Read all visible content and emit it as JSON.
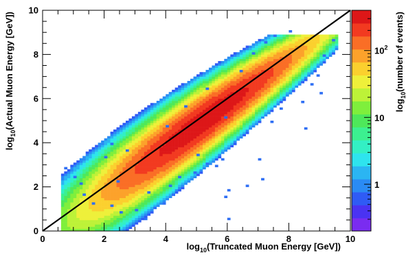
{
  "chart_data": {
    "type": "heatmap",
    "title": "",
    "xlabel": "log10(Truncated Muon Energy [GeV])",
    "ylabel": "log10(Actual Muon Energy [GeV])",
    "xlim": [
      0,
      10
    ],
    "ylim": [
      0,
      10
    ],
    "x_ticks": [
      "0",
      "2",
      "4",
      "6",
      "8",
      "10"
    ],
    "y_ticks": [
      "0",
      "2",
      "4",
      "6",
      "8",
      "10"
    ],
    "colorbar": {
      "label": "log10(number of events)",
      "scale": "log",
      "range": [
        0.2,
        400
      ],
      "ticks": [
        {
          "value": 1,
          "label": "1"
        },
        {
          "value": 10,
          "label": "10"
        },
        {
          "value": 100,
          "label": "10^2"
        }
      ]
    },
    "reference_line": {
      "description": "y = x",
      "from": [
        0,
        0
      ],
      "to": [
        10,
        10
      ],
      "color": "#000000"
    },
    "band": {
      "x_start": 0.6,
      "x_end": 9.6,
      "y_max": 8.9,
      "offset": -0.2,
      "spread_near_start": 0.85,
      "spread_near_end": 0.42,
      "peak_count": 350
    },
    "outliers": [
      [
        0.7,
        2.8
      ],
      [
        1.0,
        2.4
      ],
      [
        1.2,
        2.1
      ],
      [
        1.3,
        1.6
      ],
      [
        1.6,
        1.2
      ],
      [
        2.2,
        1.1
      ],
      [
        2.5,
        0.8
      ],
      [
        3.3,
        0.5
      ],
      [
        3.0,
        0.9
      ],
      [
        3.6,
        1.0
      ],
      [
        2.0,
        3.3
      ],
      [
        2.2,
        3.9
      ],
      [
        2.7,
        3.6
      ],
      [
        4.2,
        1.6
      ],
      [
        4.4,
        2.4
      ],
      [
        4.9,
        2.6
      ],
      [
        5.3,
        3.0
      ],
      [
        5.6,
        2.9
      ],
      [
        5.8,
        3.2
      ],
      [
        6.0,
        1.8
      ],
      [
        5.9,
        1.5
      ],
      [
        6.0,
        0.5
      ],
      [
        7.1,
        2.3
      ],
      [
        7.0,
        3.2
      ],
      [
        8.5,
        4.6
      ],
      [
        8.4,
        5.8
      ],
      [
        7.4,
        4.9
      ],
      [
        7.7,
        5.5
      ],
      [
        5.9,
        5.1
      ],
      [
        5.0,
        3.4
      ],
      [
        6.6,
        2.0
      ],
      [
        4.1,
        2.0
      ],
      [
        3.9,
        1.2
      ],
      [
        2.4,
        2.2
      ],
      [
        8.9,
        7.0
      ],
      [
        9.1,
        7.9
      ],
      [
        9.4,
        8.6
      ],
      [
        7.2,
        8.5
      ],
      [
        7.5,
        8.8
      ],
      [
        6.8,
        8.0
      ],
      [
        8.0,
        9.0
      ],
      [
        6.4,
        7.2
      ],
      [
        5.3,
        6.4
      ],
      [
        4.6,
        5.6
      ],
      [
        4.0,
        4.7
      ],
      [
        9.0,
        6.2
      ],
      [
        8.7,
        6.6
      ],
      [
        3.4,
        1.7
      ]
    ]
  }
}
